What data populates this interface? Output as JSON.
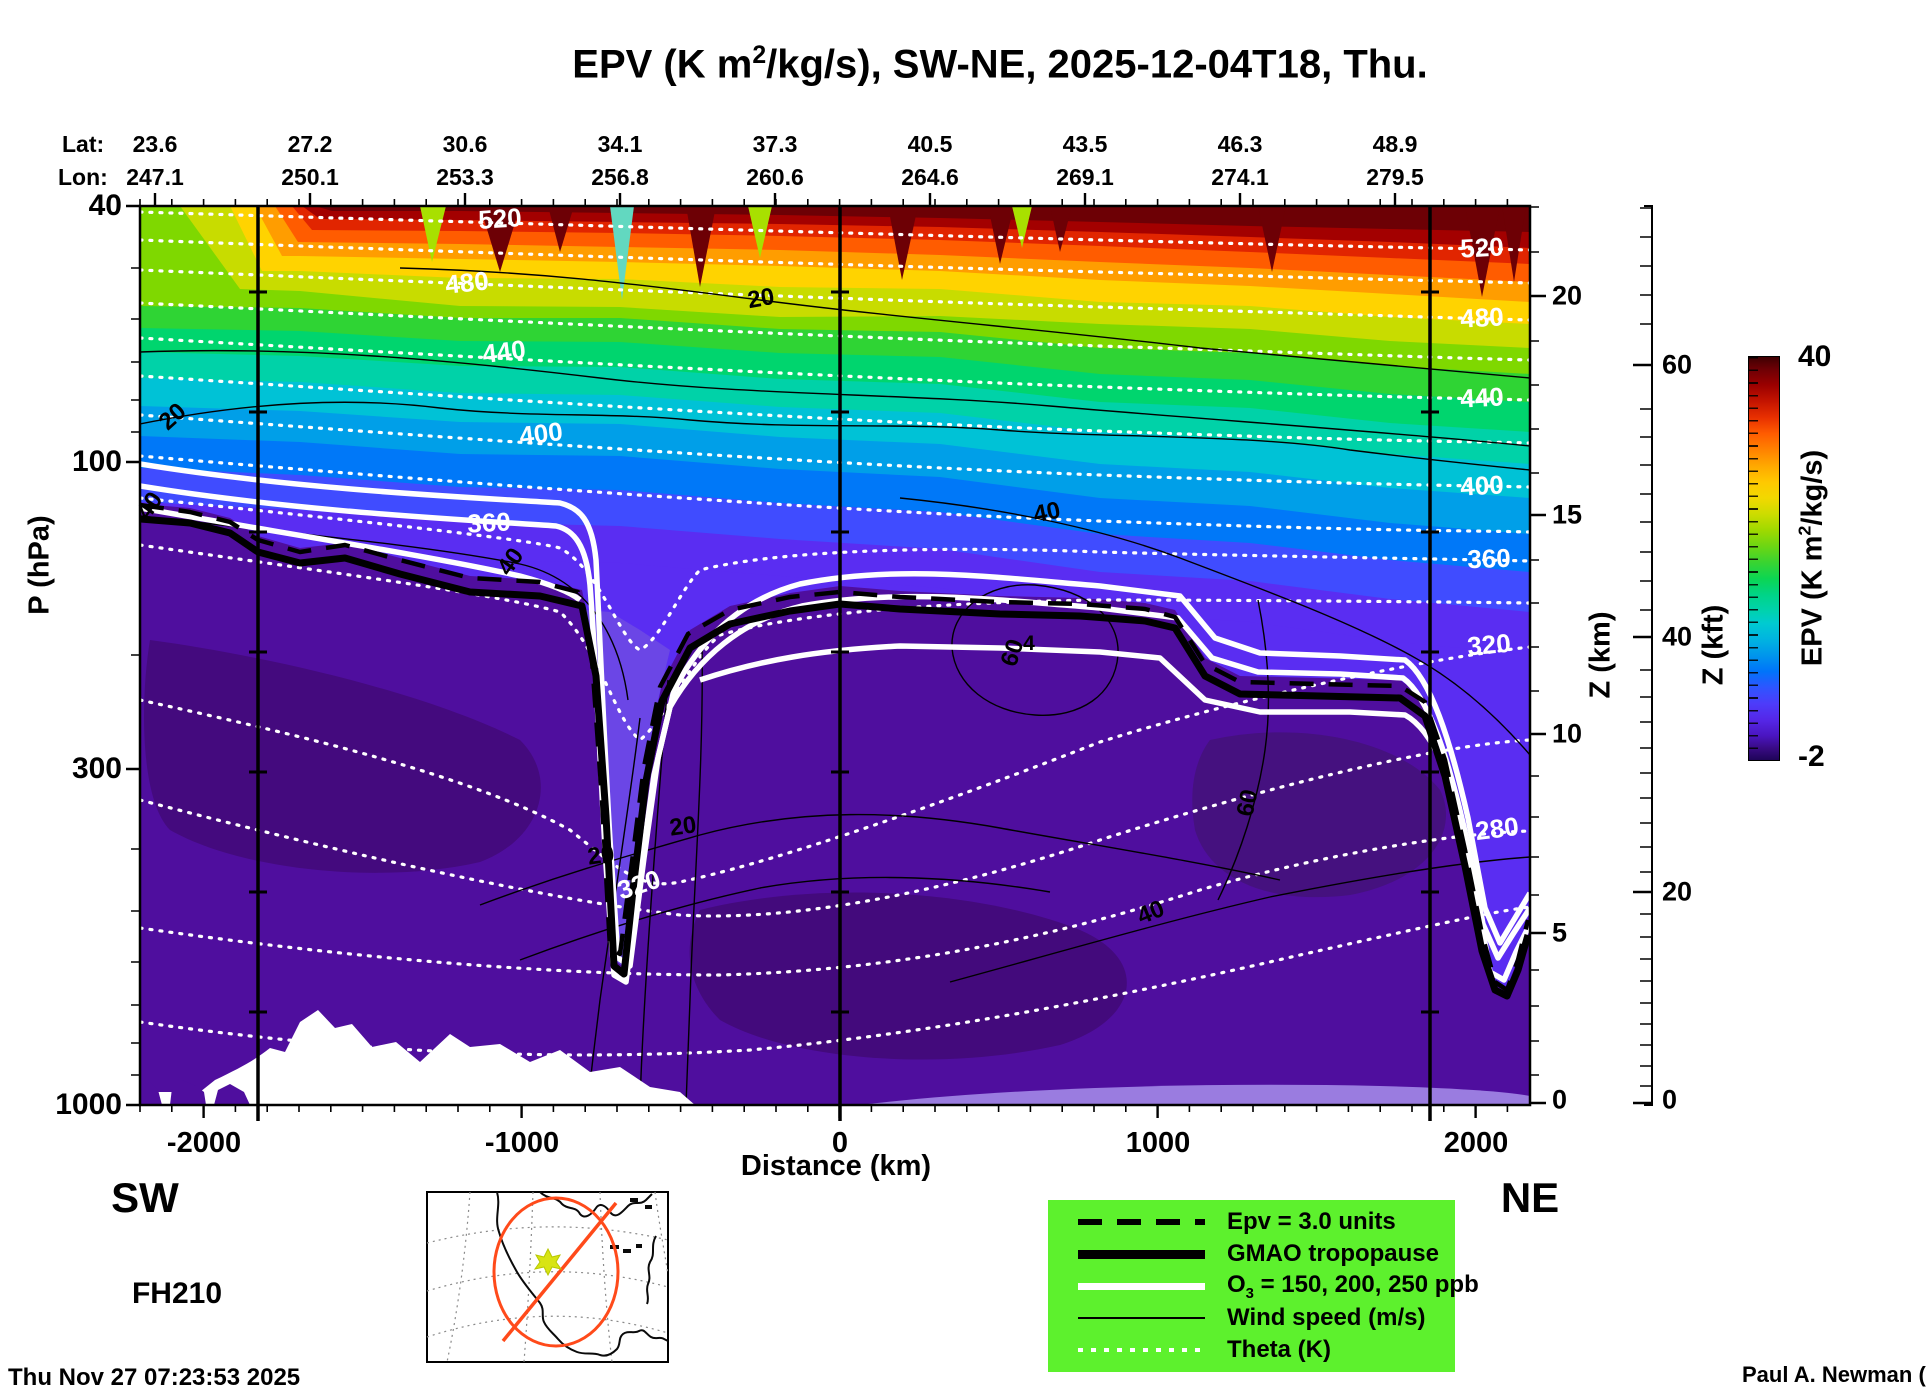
{
  "title": {
    "pre": "EPV (K m",
    "sup": "2",
    "post": "/kg/s), SW-NE, 2025-12-04T18, Thu."
  },
  "top_axis": {
    "lat_label": "Lat:",
    "lon_label": "Lon:",
    "lats": [
      "23.6",
      "27.2",
      "30.6",
      "34.1",
      "37.3",
      "40.5",
      "43.5",
      "46.3",
      "48.9"
    ],
    "lons": [
      "247.1",
      "250.1",
      "253.3",
      "256.8",
      "260.6",
      "264.6",
      "269.1",
      "274.1",
      "279.5"
    ]
  },
  "y_axis": {
    "label": "P (hPa)",
    "ticks": [
      "40",
      "100",
      "300",
      "1000"
    ]
  },
  "x_axis": {
    "label": "Distance (km)",
    "ticks": [
      "-2000",
      "-1000",
      "0",
      "1000",
      "2000"
    ]
  },
  "z_km_axis": {
    "label": "Z (km)",
    "ticks": [
      "20",
      "15",
      "10",
      "5",
      "0"
    ]
  },
  "z_kft_axis": {
    "label": "Z (kft)",
    "ticks": [
      "60",
      "40",
      "20",
      "0"
    ]
  },
  "colorbar": {
    "label_pre": "EPV (K m",
    "label_sup": "2",
    "label_post": "/kg/s)",
    "max": "40",
    "min": "-2"
  },
  "corners": {
    "sw": "SW",
    "ne": "NE"
  },
  "run_label": "FH210",
  "timestamp": "Thu Nov 27 07:23:53 2025",
  "credit": "Paul A. Newman (NASA",
  "legend": {
    "bg_color": "#5df12d",
    "items": [
      {
        "label": "Epv = 3.0 units"
      },
      {
        "label": "GMAO tropopause"
      },
      {
        "label_pre": "O",
        "label_sub": "3",
        "label_post": " = 150, 200, 250 ppb"
      },
      {
        "label": "Wind speed (m/s)"
      },
      {
        "label": "Theta (K)"
      }
    ]
  },
  "contour_labels": {
    "theta_mid": [
      "520",
      "480",
      "440",
      "400",
      "360",
      "320"
    ],
    "theta_right": [
      "520",
      "480",
      "440",
      "400",
      "360",
      "320",
      "280"
    ],
    "wind": [
      "20",
      "20",
      "40",
      "40",
      "40",
      "60",
      "60",
      "40",
      "20",
      "20"
    ],
    "epv_mid": "4"
  },
  "chart_data": {
    "type": "heatmap",
    "title": "EPV (K m2/kg/s), SW-NE, 2025-12-04T18, Thu.",
    "xlabel": "Distance (km)",
    "ylabel": "P (hPa)",
    "x_ticks": [
      -2000,
      -1000,
      0,
      1000,
      2000
    ],
    "xlim": [
      -2200,
      2200
    ],
    "ylim": [
      1000,
      40
    ],
    "y_scale": "log",
    "waypoint_lats": [
      23.6,
      27.2,
      30.6,
      34.1,
      37.3,
      40.5,
      43.5,
      46.3,
      48.9
    ],
    "waypoint_lons": [
      247.1,
      250.1,
      253.3,
      256.8,
      260.6,
      264.6,
      269.1,
      274.1,
      279.5
    ],
    "waypoint_marker_lines_km": [
      -1830,
      0,
      1855
    ],
    "secondary_y_axes": [
      {
        "label": "Z (km)",
        "ticks": [
          0,
          5,
          10,
          15,
          20
        ]
      },
      {
        "label": "Z (kft)",
        "ticks": [
          0,
          20,
          40,
          60
        ]
      }
    ],
    "colorbar": {
      "label": "EPV (K m2/kg/s)",
      "min": -2,
      "max": 40
    },
    "overlay_contours": {
      "theta_K": [
        260,
        280,
        300,
        320,
        340,
        360,
        380,
        400,
        420,
        440,
        460,
        480,
        500,
        520
      ],
      "wind_speed_ms": [
        20,
        40,
        60
      ],
      "epv_contour_units": 3.0,
      "o3_ppb": [
        150,
        200,
        250
      ],
      "tropopause": "GMAO"
    },
    "legend_position": "bottom-right",
    "section_orientation": {
      "left": "SW",
      "right": "NE"
    },
    "forecast_hour": "FH210",
    "created": "Thu Nov 27 07:23:53 2025"
  }
}
